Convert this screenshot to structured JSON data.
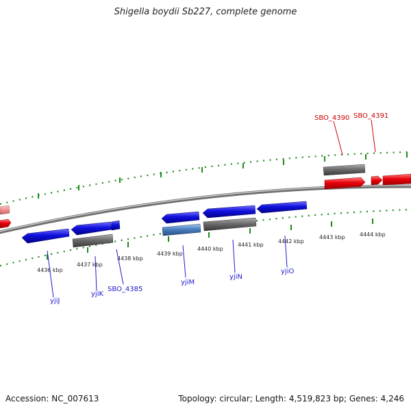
{
  "title": "Shigella boydii Sb227, complete genome",
  "footer": {
    "accession": "Accession: NC_007613",
    "summary": "Topology: circular; Length: 4,519,823 bp; Genes: 4,246"
  },
  "colors": {
    "forward_cds": "#e8000b",
    "reverse_cds": "#1010dd",
    "reverse_cds_alt": "#4a7fc0",
    "gene_feature": "#6c6c6c",
    "tick": "#1a8a1a",
    "forward_label": "#cc0000",
    "reverse_label": "#1a1acc"
  },
  "scale": {
    "unit": "kbp",
    "ticks": [
      {
        "kbp": 4436,
        "label": "4436 kbp"
      },
      {
        "kbp": 4437,
        "label": "4437 kbp"
      },
      {
        "kbp": 4438,
        "label": "4438 kbp"
      },
      {
        "kbp": 4439,
        "label": "4439 kbp"
      },
      {
        "kbp": 4440,
        "label": "4440 kbp"
      },
      {
        "kbp": 4441,
        "label": "4441 kbp"
      },
      {
        "kbp": 4442,
        "label": "4442 kbp"
      },
      {
        "kbp": 4443,
        "label": "4443 kbp"
      },
      {
        "kbp": 4444,
        "label": "4444 kbp"
      }
    ]
  },
  "gene_labels": {
    "forward": [
      {
        "name": "SBO_4390"
      },
      {
        "name": "SBO_4391"
      }
    ],
    "reverse": [
      {
        "name": "yjiJ"
      },
      {
        "name": "yjiK"
      },
      {
        "name": "SBO_4385"
      },
      {
        "name": "yjiM"
      },
      {
        "name": "yjiN"
      },
      {
        "name": "yjiO"
      }
    ]
  }
}
